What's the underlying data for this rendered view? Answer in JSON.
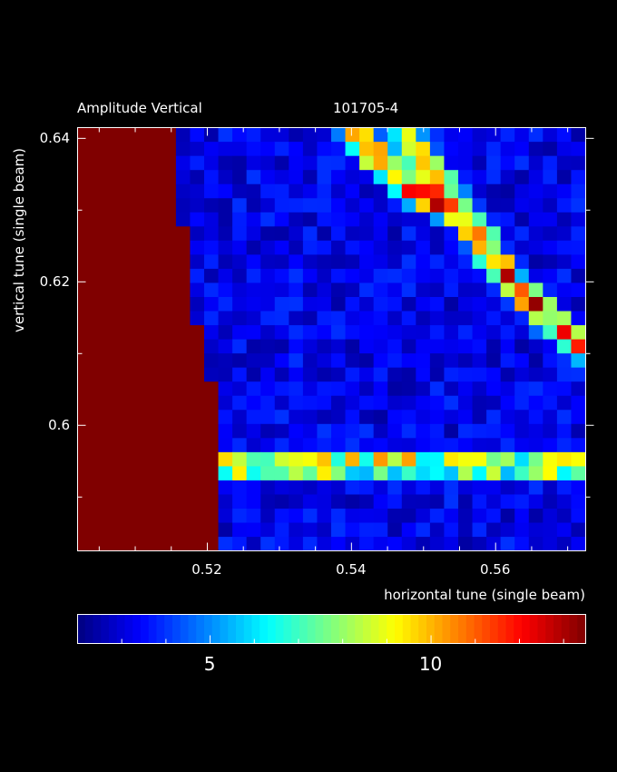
{
  "chart_data": {
    "type": "heatmap",
    "title_left": "Amplitude Vertical",
    "title_right": "101705-4",
    "xlabel": "horizontal tune (single beam)",
    "ylabel": "vertical tune (single beam)",
    "xlim": [
      0.502,
      0.5725
    ],
    "ylim": [
      0.5825,
      0.6415
    ],
    "x_ticks": [
      "0.52",
      "0.54",
      "0.56"
    ],
    "x_tick_values": [
      0.52,
      0.54,
      0.56
    ],
    "y_ticks": [
      "0.6",
      "0.62",
      "0.64"
    ],
    "y_tick_values": [
      0.6,
      0.62,
      0.64
    ],
    "colorbar": {
      "min": 2,
      "max": 13.5,
      "ticks": [
        "5",
        "10"
      ],
      "tick_values": [
        5,
        10
      ]
    },
    "grid": {
      "cols": 36,
      "rows": 30
    },
    "saturated_region": [
      {
        "x_from": 0.502,
        "x_to": 0.516,
        "y_from": 0.628,
        "y_to": 0.6415
      },
      {
        "x_from": 0.502,
        "x_to": 0.518,
        "y_from": 0.614,
        "y_to": 0.628
      },
      {
        "x_from": 0.502,
        "x_to": 0.52,
        "y_from": 0.607,
        "y_to": 0.614
      },
      {
        "x_from": 0.502,
        "x_to": 0.522,
        "y_from": 0.5825,
        "y_to": 0.607
      }
    ],
    "resonance_lines": [
      {
        "name": "",
        "points": [
          [
            0.5475,
            0.6405
          ],
          [
            0.552,
            0.634
          ],
          [
            0.558,
            0.626
          ],
          [
            0.563,
            0.619
          ],
          [
            0.5715,
            0.611
          ]
        ]
      },
      {
        "name": "",
        "points": [
          [
            0.5405,
            0.6405
          ],
          [
            0.5445,
            0.6365
          ],
          [
            0.55,
            0.632
          ],
          [
            0.5555,
            0.629
          ]
        ]
      },
      {
        "name": "",
        "points": [
          [
            0.5215,
            0.5945
          ],
          [
            0.5725,
            0.5945
          ]
        ]
      }
    ]
  }
}
